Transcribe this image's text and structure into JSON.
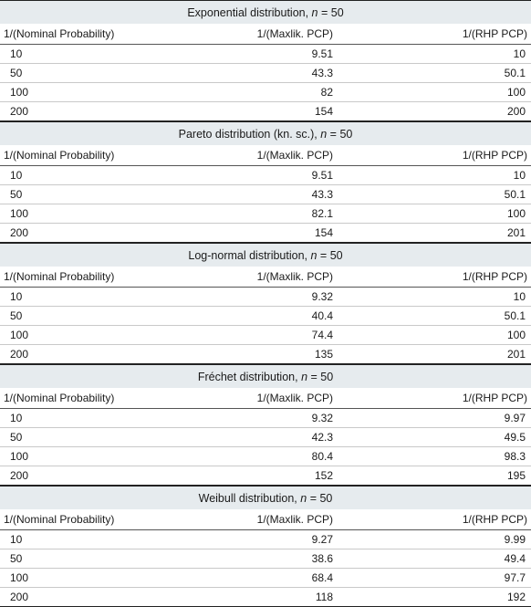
{
  "columns": [
    "1/(Nominal Probability)",
    "1/(Maxlik. PCP)",
    "1/(RHP PCP)"
  ],
  "sections": [
    {
      "title_prefix": "Exponential distribution, ",
      "title_math": "n",
      "title_suffix": " = 50",
      "rows": [
        [
          "10",
          "9.51",
          "10"
        ],
        [
          "50",
          "43.3",
          "50.1"
        ],
        [
          "100",
          "82",
          "100"
        ],
        [
          "200",
          "154",
          "200"
        ]
      ]
    },
    {
      "title_prefix": "Pareto distribution (kn. sc.), ",
      "title_math": "n",
      "title_suffix": " = 50",
      "rows": [
        [
          "10",
          "9.51",
          "10"
        ],
        [
          "50",
          "43.3",
          "50.1"
        ],
        [
          "100",
          "82.1",
          "100"
        ],
        [
          "200",
          "154",
          "201"
        ]
      ]
    },
    {
      "title_prefix": "Log-normal distribution, ",
      "title_math": "n",
      "title_suffix": " = 50",
      "rows": [
        [
          "10",
          "9.32",
          "10"
        ],
        [
          "50",
          "40.4",
          "50.1"
        ],
        [
          "100",
          "74.4",
          "100"
        ],
        [
          "200",
          "135",
          "201"
        ]
      ]
    },
    {
      "title_prefix": "Fréchet distribution, ",
      "title_math": "n",
      "title_suffix": " = 50",
      "rows": [
        [
          "10",
          "9.32",
          "9.97"
        ],
        [
          "50",
          "42.3",
          "49.5"
        ],
        [
          "100",
          "80.4",
          "98.3"
        ],
        [
          "200",
          "152",
          "195"
        ]
      ]
    },
    {
      "title_prefix": "Weibull distribution, ",
      "title_math": "n",
      "title_suffix": " = 50",
      "rows": [
        [
          "10",
          "9.27",
          "9.99"
        ],
        [
          "50",
          "38.6",
          "49.4"
        ],
        [
          "100",
          "68.4",
          "97.7"
        ],
        [
          "200",
          "118",
          "192"
        ]
      ]
    }
  ]
}
